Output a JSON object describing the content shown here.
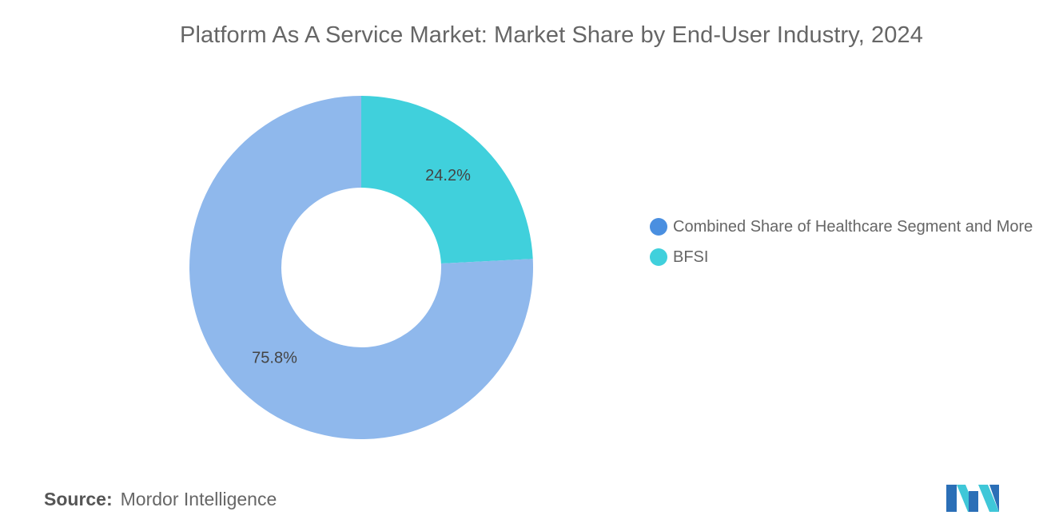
{
  "title": "Platform As A Service Market: Market Share by End-User Industry, 2024",
  "source": {
    "label": "Source:",
    "value": "Mordor Intelligence"
  },
  "logo_icon": "mordor-intelligence-logo",
  "chart_data": {
    "type": "pie",
    "subtype": "donut",
    "title": "Platform As A Service Market: Market Share by End-User Industry, 2024",
    "legend_position": "right",
    "slices": [
      {
        "name": "BFSI",
        "value": 24.2,
        "label": "24.2%",
        "color": "#40d0dc"
      },
      {
        "name": "Combined Share of Healthcare Segment and More",
        "value": 75.8,
        "label": "75.8%",
        "color": "#8fb8ec"
      }
    ],
    "legend": [
      {
        "name": "Combined Share of Healthcare Segment and More",
        "color": "#4a8fe0"
      },
      {
        "name": "BFSI",
        "color": "#40d0dc"
      }
    ]
  }
}
